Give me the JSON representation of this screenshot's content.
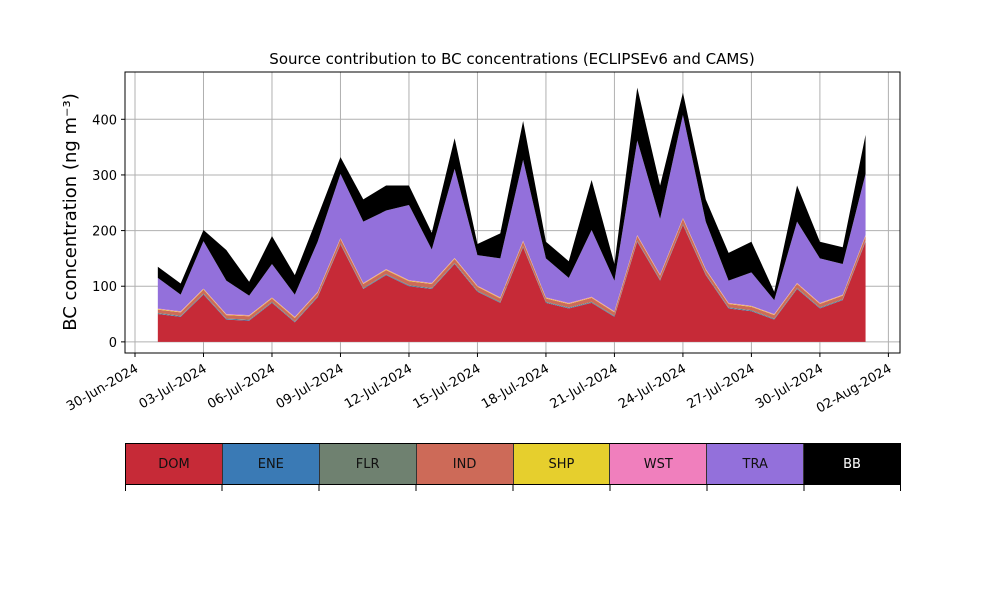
{
  "chart_data": {
    "type": "area",
    "title": "Source contribution to BC concentrations (ECLIPSEv6 and CAMS)",
    "ylabel": "BC concentration (ng m⁻³)",
    "xlabel": "",
    "x_tick_labels": [
      "30-Jun-2024",
      "03-Jul-2024",
      "06-Jul-2024",
      "09-Jul-2024",
      "12-Jul-2024",
      "15-Jul-2024",
      "18-Jul-2024",
      "21-Jul-2024",
      "24-Jul-2024",
      "27-Jul-2024",
      "30-Jul-2024",
      "02-Aug-2024"
    ],
    "y_ticks": [
      0,
      100,
      200,
      300,
      400
    ],
    "ylim": [
      -20,
      485
    ],
    "grid": true,
    "x": [
      "2024-07-01",
      "2024-07-02",
      "2024-07-03",
      "2024-07-04",
      "2024-07-05",
      "2024-07-06",
      "2024-07-07",
      "2024-07-08",
      "2024-07-09",
      "2024-07-10",
      "2024-07-11",
      "2024-07-12",
      "2024-07-13",
      "2024-07-14",
      "2024-07-15",
      "2024-07-16",
      "2024-07-17",
      "2024-07-18",
      "2024-07-19",
      "2024-07-20",
      "2024-07-21",
      "2024-07-22",
      "2024-07-23",
      "2024-07-24",
      "2024-07-25",
      "2024-07-26",
      "2024-07-27",
      "2024-07-28",
      "2024-07-29",
      "2024-07-30",
      "2024-07-31",
      "2024-08-01"
    ],
    "series": [
      {
        "name": "DOM",
        "color": "#c62a37",
        "values": [
          50,
          45,
          85,
          40,
          38,
          70,
          35,
          80,
          175,
          95,
          120,
          100,
          95,
          140,
          90,
          70,
          170,
          70,
          60,
          70,
          45,
          180,
          110,
          210,
          120,
          60,
          55,
          40,
          95,
          60,
          75,
          180
        ]
      },
      {
        "name": "ENE",
        "color": "#3a7ab5",
        "values": [
          1,
          1,
          1,
          1,
          1,
          1,
          1,
          1,
          1,
          1,
          1,
          1,
          1,
          1,
          1,
          1,
          1,
          1,
          1,
          1,
          1,
          1,
          1,
          1,
          1,
          1,
          1,
          1,
          1,
          1,
          1,
          1
        ]
      },
      {
        "name": "FLR",
        "color": "#6f8170",
        "values": [
          1,
          1,
          1,
          1,
          1,
          1,
          1,
          1,
          1,
          1,
          1,
          1,
          1,
          1,
          1,
          1,
          1,
          1,
          1,
          1,
          1,
          1,
          1,
          1,
          1,
          1,
          1,
          1,
          1,
          1,
          1,
          1
        ]
      },
      {
        "name": "IND",
        "color": "#cd6a58",
        "values": [
          6,
          6,
          7,
          6,
          6,
          6,
          6,
          6,
          8,
          7,
          7,
          7,
          7,
          7,
          7,
          6,
          8,
          6,
          6,
          7,
          6,
          8,
          7,
          9,
          7,
          6,
          6,
          6,
          7,
          6,
          6,
          8
        ]
      },
      {
        "name": "SHP",
        "color": "#e6cf2d",
        "values": [
          1,
          1,
          1,
          1,
          1,
          1,
          1,
          1,
          1,
          1,
          1,
          1,
          1,
          1,
          1,
          1,
          1,
          1,
          1,
          1,
          1,
          1,
          1,
          1,
          1,
          1,
          1,
          1,
          1,
          1,
          1,
          1
        ]
      },
      {
        "name": "WST",
        "color": "#f07fbd",
        "values": [
          1,
          1,
          1,
          1,
          1,
          1,
          1,
          1,
          1,
          1,
          1,
          1,
          1,
          1,
          1,
          1,
          1,
          1,
          1,
          1,
          1,
          1,
          1,
          1,
          1,
          1,
          1,
          1,
          1,
          1,
          1,
          1
        ]
      },
      {
        "name": "TRA",
        "color": "#9370db",
        "values": [
          55,
          30,
          85,
          60,
          35,
          60,
          40,
          90,
          115,
          110,
          105,
          135,
          60,
          160,
          55,
          70,
          145,
          70,
          45,
          120,
          55,
          170,
          100,
          185,
          85,
          40,
          60,
          25,
          110,
          80,
          55,
          110
        ]
      },
      {
        "name": "BB",
        "color": "#000000",
        "values": [
          20,
          20,
          20,
          55,
          25,
          50,
          35,
          45,
          30,
          40,
          45,
          35,
          30,
          55,
          20,
          45,
          70,
          30,
          30,
          90,
          30,
          95,
          60,
          40,
          40,
          50,
          55,
          15,
          65,
          30,
          30,
          70
        ]
      }
    ]
  },
  "legend": [
    {
      "label": "DOM",
      "color": "#c62a37",
      "text_color": "#111111"
    },
    {
      "label": "ENE",
      "color": "#3a7ab5",
      "text_color": "#111111"
    },
    {
      "label": "FLR",
      "color": "#6f8170",
      "text_color": "#111111"
    },
    {
      "label": "IND",
      "color": "#cd6a58",
      "text_color": "#111111"
    },
    {
      "label": "SHP",
      "color": "#e6cf2d",
      "text_color": "#111111"
    },
    {
      "label": "WST",
      "color": "#f07fbd",
      "text_color": "#111111"
    },
    {
      "label": "TRA",
      "color": "#9370db",
      "text_color": "#111111"
    },
    {
      "label": "BB",
      "color": "#000000",
      "text_color": "#ffffff"
    }
  ]
}
